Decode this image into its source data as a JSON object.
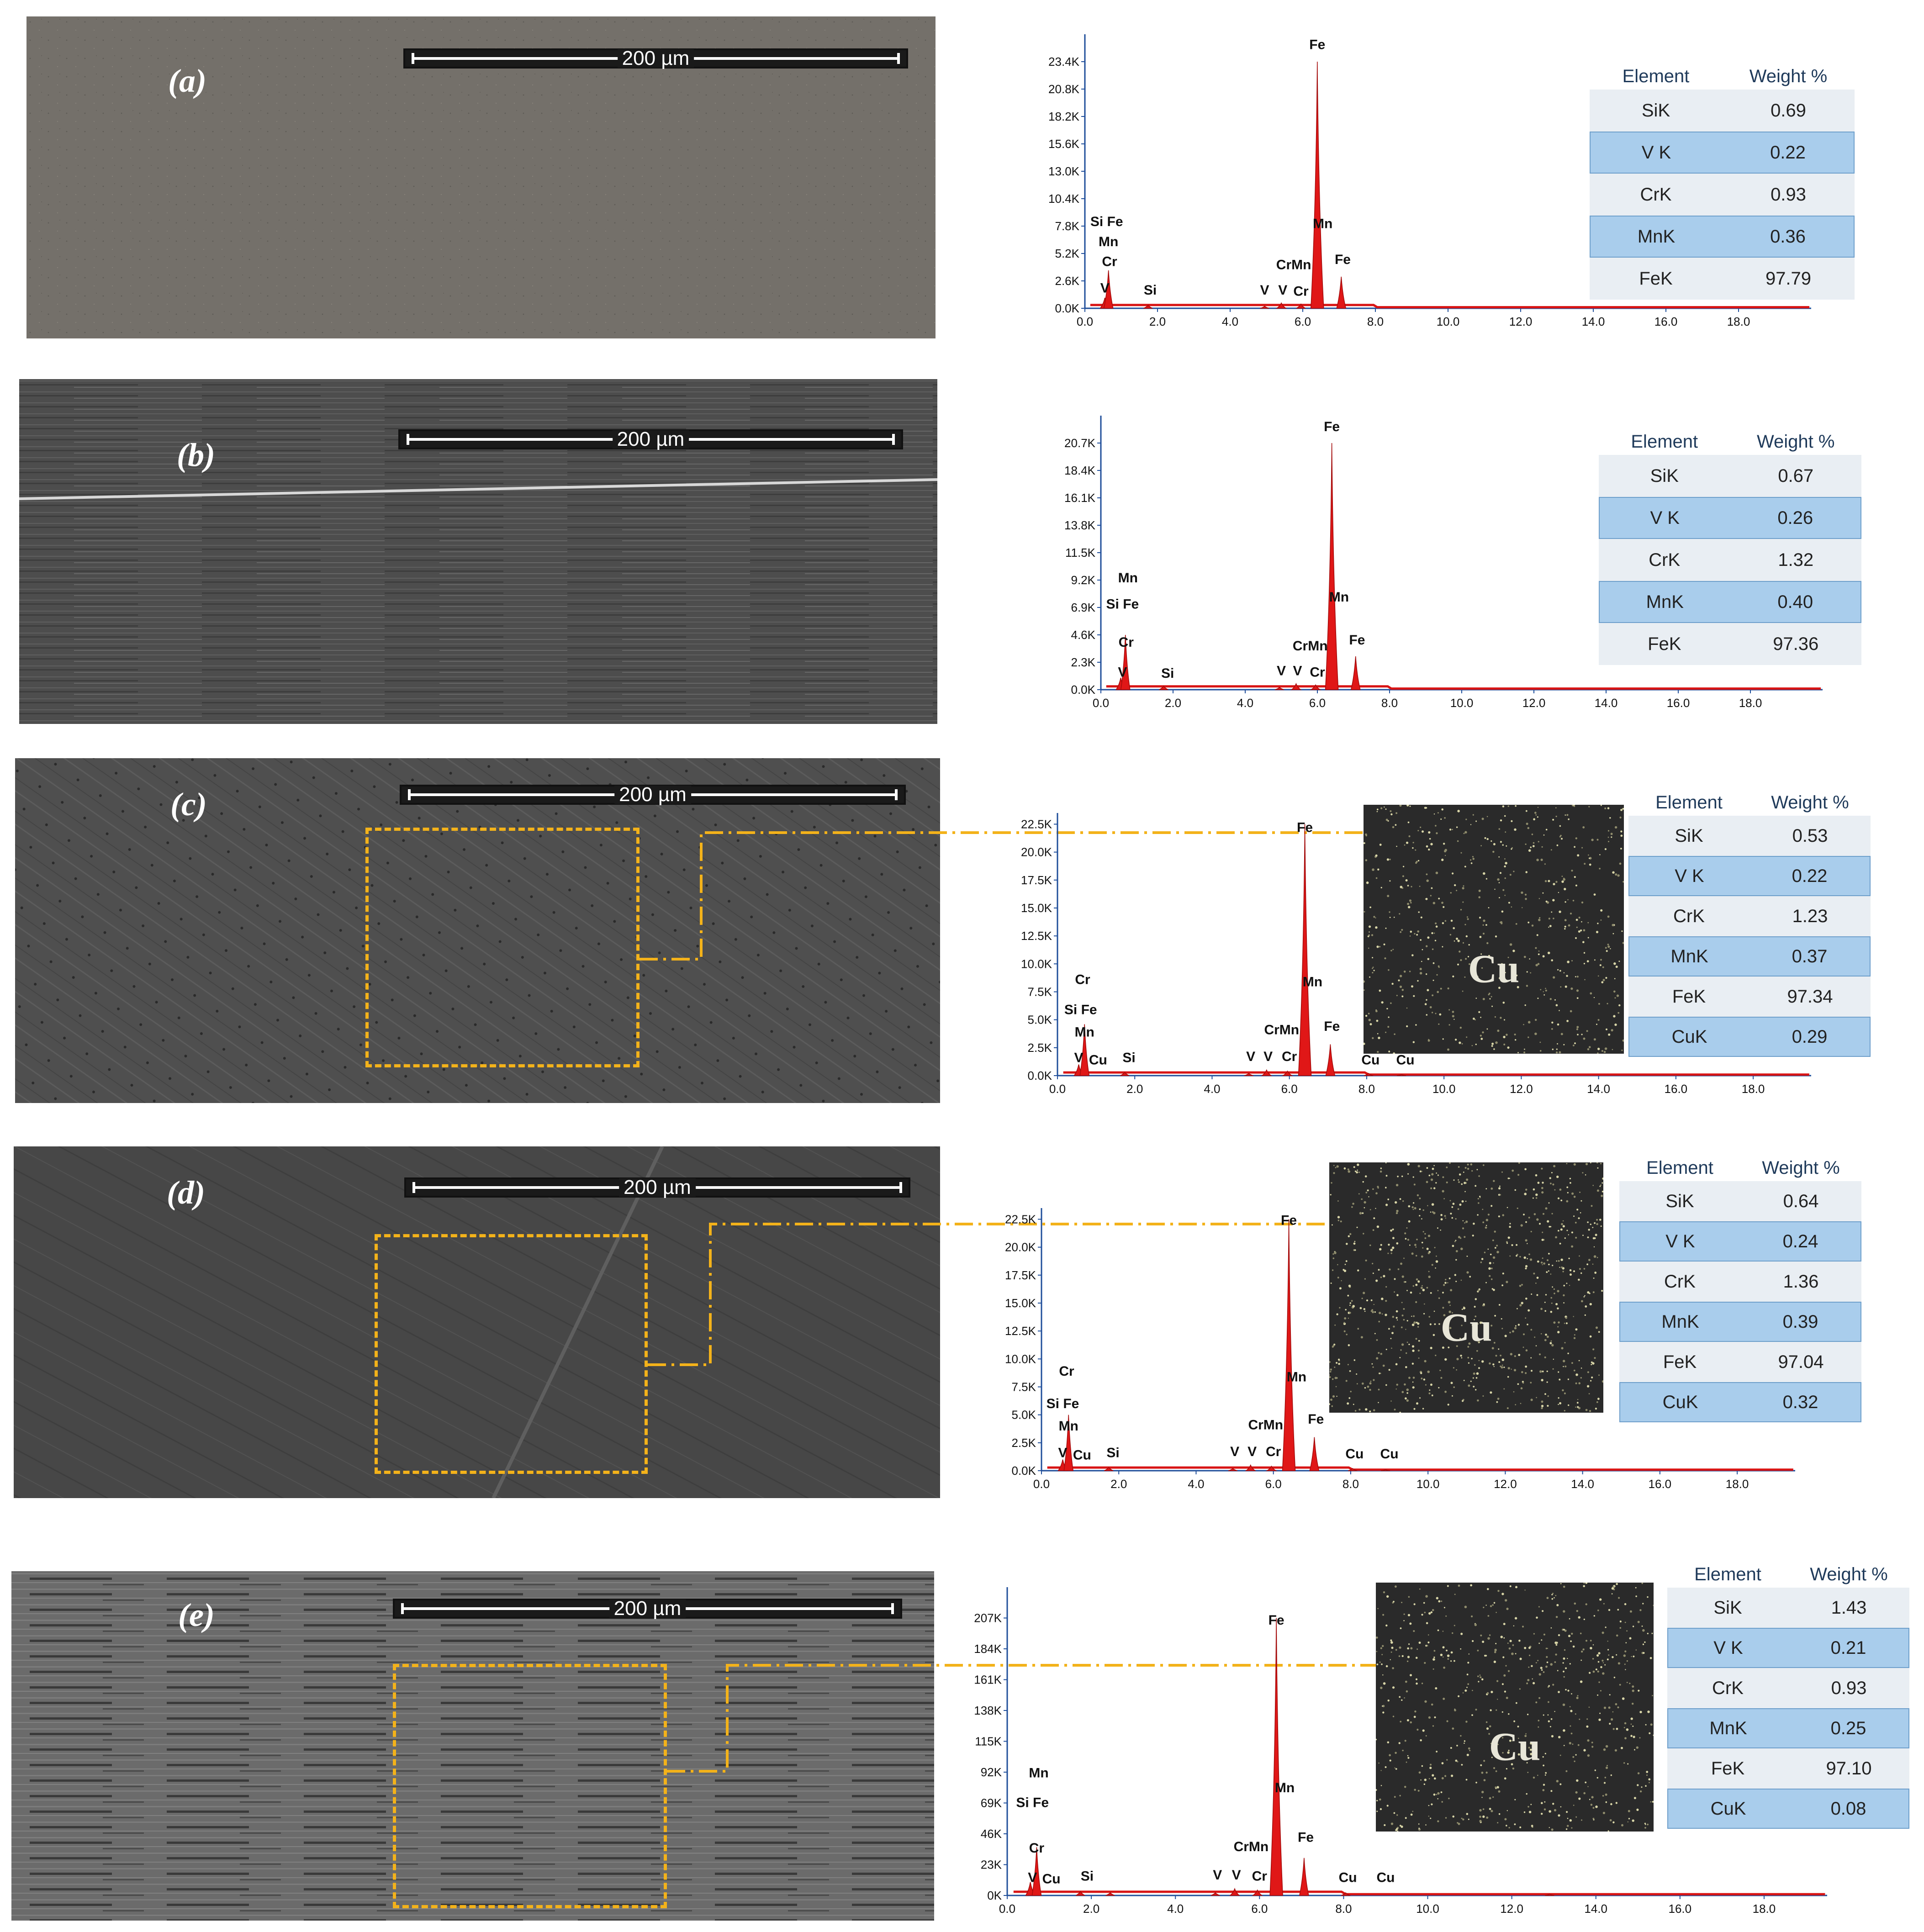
{
  "scale_text": "200 µm",
  "table_headers": {
    "element": "Element",
    "weight": "Weight %"
  },
  "cu_label": "Cu",
  "panels": [
    {
      "label": "(a)",
      "table": [
        [
          "SiK",
          "0.69"
        ],
        [
          "V K",
          "0.22"
        ],
        [
          "CrK",
          "0.93"
        ],
        [
          "MnK",
          "0.36"
        ],
        [
          "FeK",
          "97.79"
        ]
      ],
      "chart_data": {
        "type": "line",
        "xlim": [
          0,
          20
        ],
        "x_ticks": [
          "0.0",
          "2.0",
          "4.0",
          "6.0",
          "8.0",
          "10.0",
          "12.0",
          "14.0",
          "16.0",
          "18.0"
        ],
        "y_ticks": [
          "0.0K",
          "2.6K",
          "5.2K",
          "7.8K",
          "10.4K",
          "13.0K",
          "15.6K",
          "18.2K",
          "20.8K",
          "23.4K"
        ],
        "ymax": 26.0,
        "peaks": [
          {
            "x": 0.55,
            "y": 1.0
          },
          {
            "x": 0.65,
            "y": 3.6
          },
          {
            "x": 1.74,
            "y": 0.3
          },
          {
            "x": 4.95,
            "y": 0.2
          },
          {
            "x": 5.41,
            "y": 0.5
          },
          {
            "x": 5.95,
            "y": 0.4
          },
          {
            "x": 6.4,
            "y": 23.4
          },
          {
            "x": 7.06,
            "y": 3.0
          }
        ],
        "annotations": [
          {
            "text": "Si Fe",
            "x": 0.6,
            "y": 7.8
          },
          {
            "text": "Mn",
            "x": 0.65,
            "y": 5.9
          },
          {
            "text": "Cr",
            "x": 0.68,
            "y": 4.0
          },
          {
            "text": "V",
            "x": 0.55,
            "y": 1.5
          },
          {
            "text": "Si",
            "x": 1.8,
            "y": 1.3
          },
          {
            "text": "V",
            "x": 4.95,
            "y": 1.3
          },
          {
            "text": "V",
            "x": 5.45,
            "y": 1.3
          },
          {
            "text": "CrMn",
            "x": 5.75,
            "y": 3.7
          },
          {
            "text": "Cr",
            "x": 5.95,
            "y": 1.2
          },
          {
            "text": "Mn",
            "x": 6.55,
            "y": 7.6
          },
          {
            "text": "Fe",
            "x": 6.4,
            "y": 24.6
          },
          {
            "text": "Fe",
            "x": 7.1,
            "y": 4.2
          }
        ]
      }
    },
    {
      "label": "(b)",
      "table": [
        [
          "SiK",
          "0.67"
        ],
        [
          "V K",
          "0.26"
        ],
        [
          "CrK",
          "1.32"
        ],
        [
          "MnK",
          "0.40"
        ],
        [
          "FeK",
          "97.36"
        ]
      ],
      "chart_data": {
        "type": "line",
        "xlim": [
          0,
          20
        ],
        "x_ticks": [
          "0.0",
          "2.0",
          "4.0",
          "6.0",
          "8.0",
          "10.0",
          "12.0",
          "14.0",
          "16.0",
          "18.0"
        ],
        "y_ticks": [
          "0.0K",
          "2.3K",
          "4.6K",
          "6.9K",
          "9.2K",
          "11.5K",
          "13.8K",
          "16.1K",
          "18.4K",
          "20.7K"
        ],
        "ymax": 23.0,
        "peaks": [
          {
            "x": 0.55,
            "y": 1.0
          },
          {
            "x": 0.68,
            "y": 4.6
          },
          {
            "x": 1.74,
            "y": 0.3
          },
          {
            "x": 4.95,
            "y": 0.2
          },
          {
            "x": 5.41,
            "y": 0.5
          },
          {
            "x": 5.95,
            "y": 0.4
          },
          {
            "x": 6.4,
            "y": 20.7
          },
          {
            "x": 7.06,
            "y": 2.8
          }
        ],
        "annotations": [
          {
            "text": "Mn",
            "x": 0.75,
            "y": 9.0
          },
          {
            "text": "Si Fe",
            "x": 0.6,
            "y": 6.8
          },
          {
            "text": "Cr",
            "x": 0.7,
            "y": 3.6
          },
          {
            "text": "V",
            "x": 0.6,
            "y": 1.1
          },
          {
            "text": "Si",
            "x": 1.85,
            "y": 1.0
          },
          {
            "text": "V",
            "x": 5.0,
            "y": 1.2
          },
          {
            "text": "V",
            "x": 5.45,
            "y": 1.2
          },
          {
            "text": "CrMn",
            "x": 5.8,
            "y": 3.3
          },
          {
            "text": "Cr",
            "x": 6.0,
            "y": 1.1
          },
          {
            "text": "Mn",
            "x": 6.6,
            "y": 7.4
          },
          {
            "text": "Fe",
            "x": 6.4,
            "y": 21.7
          },
          {
            "text": "Fe",
            "x": 7.1,
            "y": 3.8
          }
        ]
      }
    },
    {
      "label": "(c)",
      "table": [
        [
          "SiK",
          "0.53"
        ],
        [
          "V K",
          "0.22"
        ],
        [
          "CrK",
          "1.23"
        ],
        [
          "MnK",
          "0.37"
        ],
        [
          "FeK",
          "97.34"
        ],
        [
          "CuK",
          "0.29"
        ]
      ],
      "chart_data": {
        "type": "line",
        "xlim": [
          0,
          19.5
        ],
        "x_ticks": [
          "0.0",
          "2.0",
          "4.0",
          "6.0",
          "8.0",
          "10.0",
          "12.0",
          "14.0",
          "16.0",
          "18.0"
        ],
        "y_ticks": [
          "0.0K",
          "2.5K",
          "5.0K",
          "7.5K",
          "10.0K",
          "12.5K",
          "15.0K",
          "17.5K",
          "20.0K",
          "22.5K"
        ],
        "ymax": 23.5,
        "peaks": [
          {
            "x": 0.55,
            "y": 1.0
          },
          {
            "x": 0.7,
            "y": 4.6
          },
          {
            "x": 1.74,
            "y": 0.3
          },
          {
            "x": 4.95,
            "y": 0.2
          },
          {
            "x": 5.41,
            "y": 0.5
          },
          {
            "x": 5.95,
            "y": 0.4
          },
          {
            "x": 6.4,
            "y": 22.5
          },
          {
            "x": 7.06,
            "y": 2.8
          },
          {
            "x": 8.05,
            "y": 0.2
          },
          {
            "x": 8.9,
            "y": 0.1
          }
        ],
        "annotations": [
          {
            "text": "Cr",
            "x": 0.65,
            "y": 8.2
          },
          {
            "text": "Si Fe",
            "x": 0.6,
            "y": 5.5
          },
          {
            "text": "Mn",
            "x": 0.7,
            "y": 3.5
          },
          {
            "text": "V",
            "x": 0.55,
            "y": 1.2
          },
          {
            "text": "Cu",
            "x": 1.05,
            "y": 1.0
          },
          {
            "text": "Si",
            "x": 1.85,
            "y": 1.2
          },
          {
            "text": "V",
            "x": 5.0,
            "y": 1.3
          },
          {
            "text": "V",
            "x": 5.45,
            "y": 1.3
          },
          {
            "text": "CrMn",
            "x": 5.8,
            "y": 3.7
          },
          {
            "text": "Cr",
            "x": 6.0,
            "y": 1.3
          },
          {
            "text": "Mn",
            "x": 6.6,
            "y": 8.0
          },
          {
            "text": "Fe",
            "x": 6.4,
            "y": 21.8
          },
          {
            "text": "Fe",
            "x": 7.1,
            "y": 4.0
          },
          {
            "text": "Cu",
            "x": 8.1,
            "y": 1.0
          },
          {
            "text": "Cu",
            "x": 9.0,
            "y": 1.0
          }
        ]
      }
    },
    {
      "label": "(d)",
      "table": [
        [
          "SiK",
          "0.64"
        ],
        [
          "V K",
          "0.24"
        ],
        [
          "CrK",
          "1.36"
        ],
        [
          "MnK",
          "0.39"
        ],
        [
          "FeK",
          "97.04"
        ],
        [
          "CuK",
          "0.32"
        ]
      ],
      "chart_data": {
        "type": "line",
        "xlim": [
          0,
          19.5
        ],
        "x_ticks": [
          "0.0",
          "2.0",
          "4.0",
          "6.0",
          "8.0",
          "10.0",
          "12.0",
          "14.0",
          "16.0",
          "18.0"
        ],
        "y_ticks": [
          "0.0K",
          "2.5K",
          "5.0K",
          "7.5K",
          "10.0K",
          "12.5K",
          "15.0K",
          "17.5K",
          "20.0K",
          "22.5K"
        ],
        "ymax": 23.5,
        "peaks": [
          {
            "x": 0.55,
            "y": 1.0
          },
          {
            "x": 0.7,
            "y": 5.0
          },
          {
            "x": 1.74,
            "y": 0.3
          },
          {
            "x": 4.95,
            "y": 0.2
          },
          {
            "x": 5.41,
            "y": 0.5
          },
          {
            "x": 5.95,
            "y": 0.4
          },
          {
            "x": 6.4,
            "y": 22.5
          },
          {
            "x": 7.06,
            "y": 3.0
          },
          {
            "x": 8.05,
            "y": 0.2
          },
          {
            "x": 8.9,
            "y": 0.1
          }
        ],
        "annotations": [
          {
            "text": "Cr",
            "x": 0.65,
            "y": 8.5
          },
          {
            "text": "Si Fe",
            "x": 0.55,
            "y": 5.6
          },
          {
            "text": "Mn",
            "x": 0.7,
            "y": 3.6
          },
          {
            "text": "V",
            "x": 0.55,
            "y": 1.2
          },
          {
            "text": "Cu",
            "x": 1.05,
            "y": 1.0
          },
          {
            "text": "Si",
            "x": 1.85,
            "y": 1.2
          },
          {
            "text": "V",
            "x": 5.0,
            "y": 1.3
          },
          {
            "text": "V",
            "x": 5.45,
            "y": 1.3
          },
          {
            "text": "CrMn",
            "x": 5.8,
            "y": 3.7
          },
          {
            "text": "Cr",
            "x": 6.0,
            "y": 1.3
          },
          {
            "text": "Mn",
            "x": 6.6,
            "y": 8.0
          },
          {
            "text": "Fe",
            "x": 6.4,
            "y": 22.0
          },
          {
            "text": "Fe",
            "x": 7.1,
            "y": 4.2
          },
          {
            "text": "Cu",
            "x": 8.1,
            "y": 1.1
          },
          {
            "text": "Cu",
            "x": 9.0,
            "y": 1.1
          }
        ]
      }
    },
    {
      "label": "(e)",
      "table": [
        [
          "SiK",
          "1.43"
        ],
        [
          "V K",
          "0.21"
        ],
        [
          "CrK",
          "0.93"
        ],
        [
          "MnK",
          "0.25"
        ],
        [
          "FeK",
          "97.10"
        ],
        [
          "CuK",
          "0.08"
        ]
      ],
      "chart_data": {
        "type": "line",
        "xlim": [
          0,
          19.5
        ],
        "x_ticks": [
          "0.0",
          "2.0",
          "4.0",
          "6.0",
          "8.0",
          "10.0",
          "12.0",
          "14.0",
          "16.0",
          "18.0"
        ],
        "y_ticks": [
          "0K",
          "23K",
          "46K",
          "69K",
          "92K",
          "115K",
          "138K",
          "161K",
          "184K",
          "207K"
        ],
        "ymax": 230,
        "peaks": [
          {
            "x": 0.55,
            "y": 10
          },
          {
            "x": 0.7,
            "y": 36
          },
          {
            "x": 1.74,
            "y": 3
          },
          {
            "x": 2.45,
            "y": 2
          },
          {
            "x": 4.95,
            "y": 2
          },
          {
            "x": 5.41,
            "y": 5
          },
          {
            "x": 5.95,
            "y": 4
          },
          {
            "x": 6.4,
            "y": 207
          },
          {
            "x": 7.06,
            "y": 28
          },
          {
            "x": 8.05,
            "y": 2
          },
          {
            "x": 12.9,
            "y": 1
          }
        ],
        "annotations": [
          {
            "text": "Mn",
            "x": 0.75,
            "y": 88
          },
          {
            "text": "Si Fe",
            "x": 0.6,
            "y": 66
          },
          {
            "text": "Cr",
            "x": 0.7,
            "y": 32
          },
          {
            "text": "V",
            "x": 0.6,
            "y": 10
          },
          {
            "text": "Cu",
            "x": 1.05,
            "y": 9
          },
          {
            "text": "Si",
            "x": 1.9,
            "y": 11
          },
          {
            "text": "V",
            "x": 5.0,
            "y": 12
          },
          {
            "text": "V",
            "x": 5.45,
            "y": 12
          },
          {
            "text": "CrMn",
            "x": 5.8,
            "y": 33
          },
          {
            "text": "Cr",
            "x": 6.0,
            "y": 11
          },
          {
            "text": "Mn",
            "x": 6.6,
            "y": 77
          },
          {
            "text": "Fe",
            "x": 6.4,
            "y": 202
          },
          {
            "text": "Fe",
            "x": 7.1,
            "y": 40
          },
          {
            "text": "Cu",
            "x": 8.1,
            "y": 10
          },
          {
            "text": "Cu",
            "x": 9.0,
            "y": 10
          }
        ]
      }
    }
  ]
}
